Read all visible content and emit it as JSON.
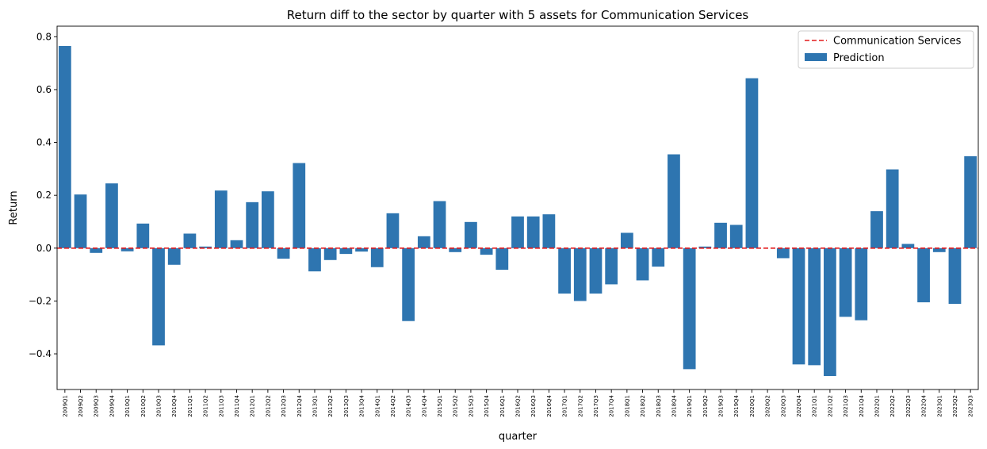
{
  "chart_data": {
    "type": "bar",
    "title": "Return diff to the sector by quarter with 5 assets for Communication Services",
    "xlabel": "quarter",
    "ylabel": "Return",
    "ylim": [
      -0.535,
      0.84
    ],
    "yticks": [
      -0.4,
      -0.2,
      0.0,
      0.2,
      0.4,
      0.6,
      0.8
    ],
    "ytick_labels": [
      "−0.4",
      "−0.2",
      "0.0",
      "0.2",
      "0.4",
      "0.6",
      "0.8"
    ],
    "grid": false,
    "legend_position": "top-right",
    "categories": [
      "2009Q1",
      "2009Q2",
      "2009Q3",
      "2009Q4",
      "2010Q1",
      "2010Q2",
      "2010Q3",
      "2010Q4",
      "2011Q1",
      "2011Q2",
      "2011Q3",
      "2011Q4",
      "2012Q1",
      "2012Q2",
      "2012Q3",
      "2012Q4",
      "2013Q1",
      "2013Q2",
      "2013Q3",
      "2013Q4",
      "2014Q1",
      "2014Q2",
      "2014Q3",
      "2014Q4",
      "2015Q1",
      "2015Q2",
      "2015Q3",
      "2015Q4",
      "2016Q1",
      "2016Q2",
      "2016Q3",
      "2016Q4",
      "2017Q1",
      "2017Q2",
      "2017Q3",
      "2017Q4",
      "2018Q1",
      "2018Q2",
      "2018Q3",
      "2018Q4",
      "2019Q1",
      "2019Q2",
      "2019Q3",
      "2019Q4",
      "2020Q1",
      "2020Q2",
      "2020Q3",
      "2020Q4",
      "2021Q1",
      "2021Q2",
      "2021Q3",
      "2021Q4",
      "2022Q1",
      "2022Q2",
      "2022Q3",
      "2022Q4",
      "2023Q1",
      "2023Q2",
      "2023Q3"
    ],
    "series": [
      {
        "name": "Prediction",
        "kind": "bar",
        "color": "#2e75b0",
        "values": [
          0.765,
          0.203,
          -0.018,
          0.245,
          -0.012,
          0.093,
          -0.368,
          -0.063,
          0.055,
          0.006,
          0.218,
          0.03,
          0.174,
          0.215,
          -0.04,
          0.322,
          -0.088,
          -0.045,
          -0.022,
          -0.013,
          -0.072,
          0.132,
          -0.276,
          0.045,
          0.178,
          -0.015,
          0.099,
          -0.025,
          -0.082,
          0.12,
          0.12,
          0.128,
          -0.172,
          -0.2,
          -0.172,
          -0.137,
          0.058,
          -0.122,
          -0.07,
          0.355,
          -0.458,
          0.006,
          0.096,
          0.088,
          0.643,
          0.0,
          -0.038,
          -0.44,
          -0.443,
          -0.484,
          -0.26,
          -0.273,
          0.14,
          0.298,
          0.016,
          -0.205,
          -0.015,
          -0.211,
          0.348
        ]
      },
      {
        "name": "Communication Services",
        "kind": "hline",
        "color": "#e41a1c",
        "value": 0.0
      }
    ]
  }
}
